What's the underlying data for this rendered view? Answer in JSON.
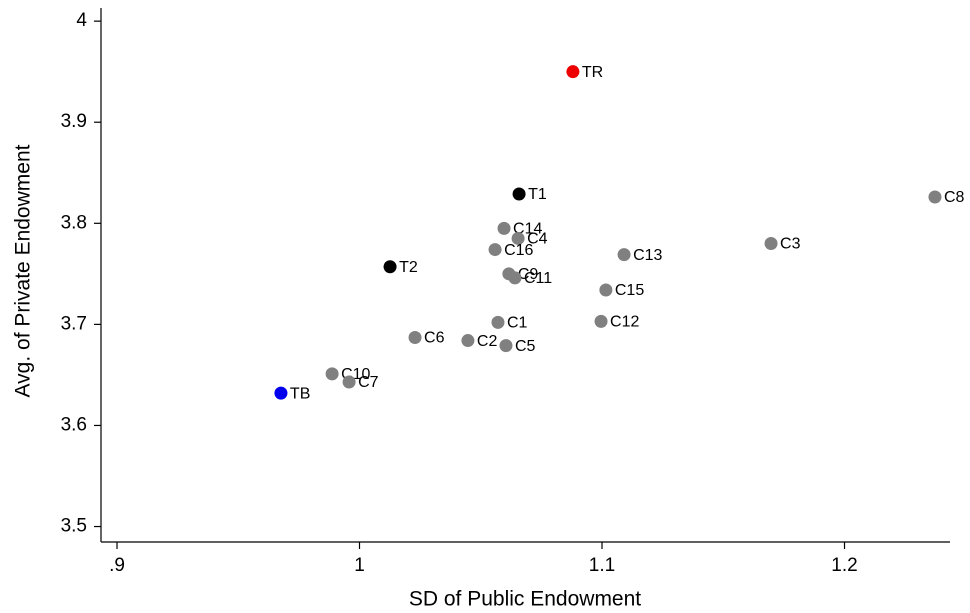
{
  "chart_data": {
    "type": "scatter",
    "x_label": "SD of Public Endowment",
    "y_label": "Avg. of Private Endowment",
    "xlim": [
      0.8934,
      1.2435
    ],
    "ylim": [
      3.4847,
      4.013
    ],
    "xticks": [
      {
        "value": 0.9,
        "label": ".9"
      },
      1,
      1.1,
      1.2
    ],
    "yticks": [
      3.5,
      3.6,
      3.7,
      3.8,
      3.9,
      4
    ],
    "points": [
      {
        "label": "TR",
        "x": 1.088,
        "y": 3.95,
        "color": "#ee0000"
      },
      {
        "label": "T1",
        "x": 1.0658,
        "y": 3.829,
        "color": "#000000"
      },
      {
        "label": "C8",
        "x": 1.2373,
        "y": 3.826,
        "color": "#808080"
      },
      {
        "label": "C14",
        "x": 1.0596,
        "y": 3.795,
        "color": "#808080"
      },
      {
        "label": "C4",
        "x": 1.0654,
        "y": 3.785,
        "color": "#808080"
      },
      {
        "label": "C16",
        "x": 1.0559,
        "y": 3.774,
        "color": "#808080"
      },
      {
        "label": "C3",
        "x": 1.1697,
        "y": 3.78,
        "color": "#808080"
      },
      {
        "label": "C13",
        "x": 1.1091,
        "y": 3.769,
        "color": "#808080"
      },
      {
        "label": "T2",
        "x": 1.0126,
        "y": 3.757,
        "color": "#000000"
      },
      {
        "label": "C9",
        "x": 1.0616,
        "y": 3.75,
        "color": "#808080"
      },
      {
        "label": "C11",
        "x": 1.0641,
        "y": 3.746,
        "color": "#808080"
      },
      {
        "label": "C15",
        "x": 1.1016,
        "y": 3.734,
        "color": "#808080"
      },
      {
        "label": "C1",
        "x": 1.0571,
        "y": 3.702,
        "color": "#808080"
      },
      {
        "label": "C12",
        "x": 1.0996,
        "y": 3.703,
        "color": "#808080"
      },
      {
        "label": "C6",
        "x": 1.0229,
        "y": 3.687,
        "color": "#808080"
      },
      {
        "label": "C2",
        "x": 1.0447,
        "y": 3.684,
        "color": "#808080"
      },
      {
        "label": "C5",
        "x": 1.0604,
        "y": 3.679,
        "color": "#808080"
      },
      {
        "label": "C10",
        "x": 0.9887,
        "y": 3.651,
        "color": "#808080"
      },
      {
        "label": "C7",
        "x": 0.9957,
        "y": 3.643,
        "color": "#808080"
      },
      {
        "label": "TB",
        "x": 0.9676,
        "y": 3.632,
        "color": "#0000ee"
      }
    ]
  }
}
